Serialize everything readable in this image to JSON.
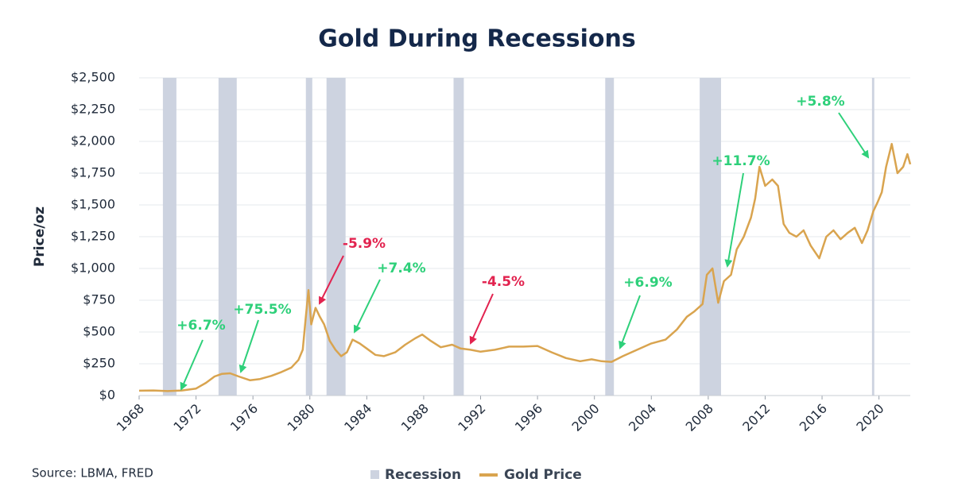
{
  "chart_data": {
    "type": "line",
    "title": "Gold During Recessions",
    "ylabel": "Price/oz",
    "source": "Source: LBMA, FRED",
    "xlim": [
      1968,
      2022.2
    ],
    "xticks": [
      1968,
      1972,
      1976,
      1980,
      1984,
      1988,
      1992,
      1996,
      2000,
      2004,
      2008,
      2012,
      2016,
      2020
    ],
    "ylim": [
      0,
      2500
    ],
    "yticks": [
      {
        "value": 0,
        "label": "$0"
      },
      {
        "value": 250,
        "label": "$250"
      },
      {
        "value": 500,
        "label": "$500"
      },
      {
        "value": 750,
        "label": "$750"
      },
      {
        "value": 1000,
        "label": "$1,000"
      },
      {
        "value": 1250,
        "label": "$1,250"
      },
      {
        "value": 1500,
        "label": "$1,500"
      },
      {
        "value": 1750,
        "label": "$1,750"
      },
      {
        "value": 2000,
        "label": "$2,000"
      },
      {
        "value": 2250,
        "label": "$2,250"
      },
      {
        "value": 2500,
        "label": "$2,500"
      }
    ],
    "grid": true,
    "recession": {
      "name": "Recession",
      "color": "#cdd3e0",
      "spans": [
        [
          1969.67,
          1970.62
        ],
        [
          1973.58,
          1974.86
        ],
        [
          1979.72,
          1980.17
        ],
        [
          1981.17,
          1982.51
        ],
        [
          1990.1,
          1990.82
        ],
        [
          2000.76,
          2001.37
        ],
        [
          2007.4,
          2008.9
        ],
        [
          2019.51,
          2019.67
        ]
      ]
    },
    "series": [
      {
        "name": "Gold Price",
        "color": "#d9a44f",
        "x": [
          1968,
          1969,
          1970,
          1971,
          1972,
          1972.7,
          1973.3,
          1973.8,
          1974.4,
          1975,
          1975.8,
          1976.5,
          1977.3,
          1978,
          1978.7,
          1979.2,
          1979.5,
          1979.7,
          1979.9,
          1980.1,
          1980.4,
          1980.7,
          1981,
          1981.4,
          1981.8,
          1982.2,
          1982.6,
          1983,
          1983.5,
          1984,
          1984.6,
          1985.2,
          1986,
          1986.7,
          1987.4,
          1987.9,
          1988.5,
          1989.2,
          1990,
          1990.6,
          1991.3,
          1992,
          1993,
          1994,
          1995,
          1996,
          1997,
          1998,
          1999,
          1999.8,
          2000.5,
          2001.2,
          2002,
          2003,
          2004,
          2005,
          2005.8,
          2006.5,
          2007,
          2007.6,
          2007.9,
          2008.3,
          2008.7,
          2009.1,
          2009.6,
          2010,
          2010.5,
          2011,
          2011.3,
          2011.6,
          2012,
          2012.5,
          2012.9,
          2013.3,
          2013.7,
          2014.2,
          2014.7,
          2015.2,
          2015.8,
          2016.3,
          2016.8,
          2017.3,
          2017.8,
          2018.3,
          2018.8,
          2019.2,
          2019.6,
          2019.9,
          2020.2,
          2020.5,
          2020.9,
          2021.3,
          2021.7,
          2022,
          2022.2
        ],
        "values": [
          38,
          40,
          35,
          40,
          55,
          100,
          150,
          170,
          175,
          150,
          120,
          130,
          155,
          185,
          220,
          280,
          360,
          600,
          830,
          560,
          690,
          620,
          560,
          430,
          360,
          310,
          340,
          440,
          410,
          370,
          320,
          310,
          340,
          400,
          450,
          480,
          430,
          380,
          400,
          370,
          360,
          345,
          360,
          385,
          385,
          390,
          340,
          295,
          270,
          285,
          270,
          265,
          310,
          360,
          410,
          440,
          520,
          620,
          660,
          720,
          950,
          1000,
          730,
          900,
          950,
          1150,
          1250,
          1400,
          1550,
          1800,
          1650,
          1700,
          1650,
          1350,
          1280,
          1250,
          1300,
          1180,
          1080,
          1250,
          1300,
          1230,
          1280,
          1320,
          1200,
          1300,
          1450,
          1520,
          1600,
          1800,
          1980,
          1750,
          1800,
          1900,
          1820
        ]
      }
    ],
    "annotations": [
      {
        "text": "+6.7%",
        "color": "#2ed07a"
      },
      {
        "text": "+75.5%",
        "color": "#2ed07a"
      },
      {
        "text": "-5.9%",
        "color": "#e2234f"
      },
      {
        "text": "+7.4%",
        "color": "#2ed07a"
      },
      {
        "text": "-4.5%",
        "color": "#e2234f"
      },
      {
        "text": "+6.9%",
        "color": "#2ed07a"
      },
      {
        "text": "+11.7%",
        "color": "#2ed07a"
      },
      {
        "text": "+5.8%",
        "color": "#2ed07a"
      }
    ]
  }
}
